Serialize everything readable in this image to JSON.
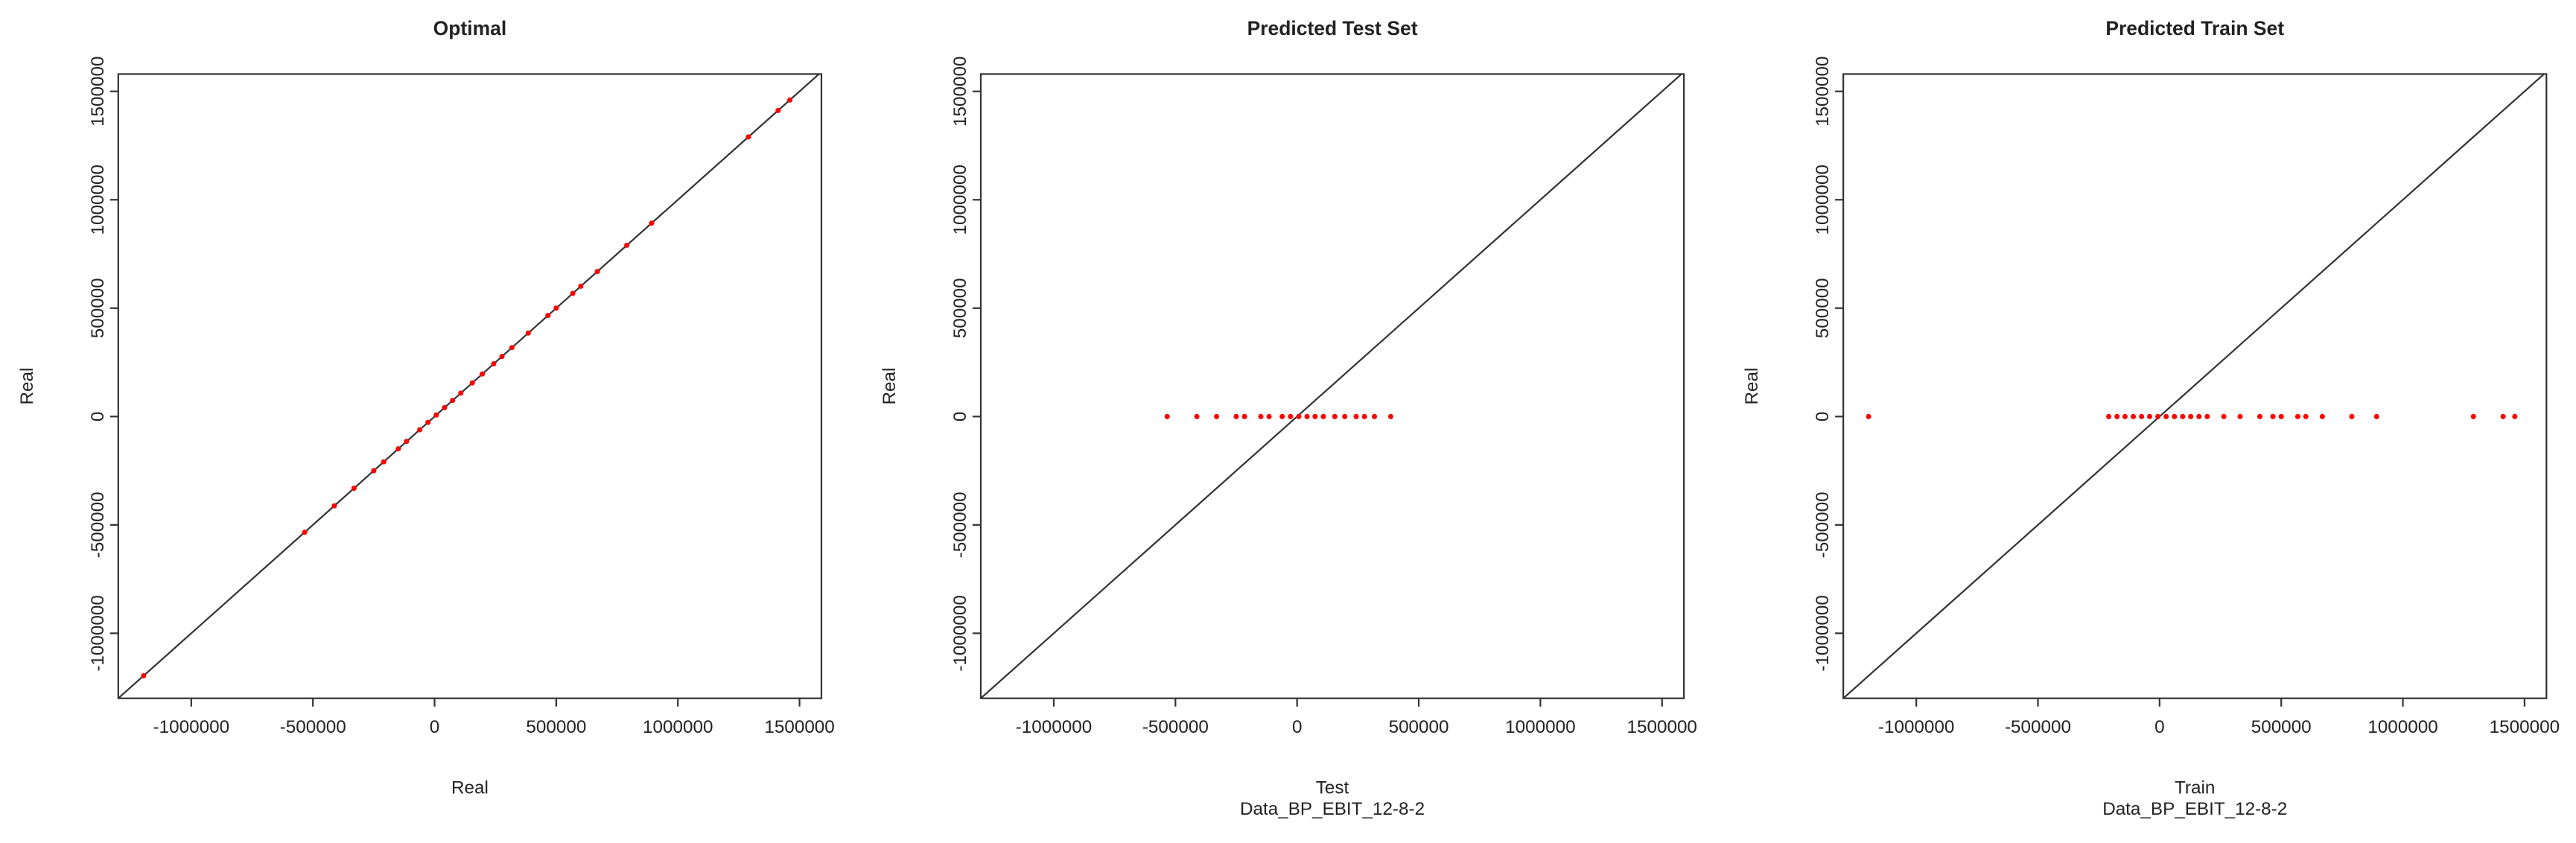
{
  "chart_data": [
    {
      "type": "scatter",
      "title": "Optimal",
      "xlabel": "Real",
      "ylabel": "Real",
      "color": "#ff0000",
      "diagonal": true,
      "x": [
        -1196000,
        -534000,
        -412000,
        -331000,
        -250000,
        -209000,
        -149000,
        -115000,
        -61000,
        -27000,
        7000,
        41000,
        74000,
        108000,
        155000,
        196000,
        243000,
        277000,
        318000,
        385000,
        466000,
        500000,
        568000,
        601000,
        669000,
        790000,
        892000,
        1290000,
        1412000,
        1460000
      ],
      "y": [
        -1196000,
        -534000,
        -412000,
        -331000,
        -250000,
        -209000,
        -149000,
        -115000,
        -61000,
        -27000,
        7000,
        41000,
        74000,
        108000,
        155000,
        196000,
        243000,
        277000,
        318000,
        385000,
        466000,
        500000,
        568000,
        601000,
        669000,
        790000,
        892000,
        1290000,
        1412000,
        1460000
      ],
      "xlim": [
        -1300000,
        1590000
      ],
      "ylim": [
        -1300000,
        1580000
      ],
      "xticks": [
        -1000000,
        -500000,
        0,
        500000,
        1000000,
        1500000
      ],
      "yticks": [
        -1000000,
        -500000,
        0,
        500000,
        1000000,
        1500000
      ]
    },
    {
      "type": "scatter",
      "title": "Predicted Test Set",
      "xlabel": "Test",
      "subtitle": "Data_BP_EBIT_12-8-2",
      "ylabel": "Real",
      "color": "#ff0000",
      "diagonal": true,
      "x": [
        -534000,
        -412000,
        -331000,
        -250000,
        -216000,
        -149000,
        -115000,
        -61000,
        -27000,
        7000,
        41000,
        74000,
        108000,
        155000,
        196000,
        243000,
        277000,
        318000,
        385000
      ],
      "y": [
        0,
        0,
        0,
        0,
        0,
        0,
        0,
        0,
        0,
        0,
        0,
        0,
        0,
        0,
        0,
        0,
        0,
        0,
        0
      ],
      "xlim": [
        -1300000,
        1590000
      ],
      "ylim": [
        -1300000,
        1580000
      ],
      "xticks": [
        -1000000,
        -500000,
        0,
        500000,
        1000000,
        1500000
      ],
      "yticks": [
        -1000000,
        -500000,
        0,
        500000,
        1000000,
        1500000
      ]
    },
    {
      "type": "scatter",
      "title": "Predicted Train Set",
      "xlabel": "Train",
      "subtitle": "Data_BP_EBIT_12-8-2",
      "ylabel": "Real",
      "color": "#ff0000",
      "diagonal": true,
      "x": [
        -1196000,
        -209000,
        -175000,
        -142000,
        -108000,
        -74000,
        -41000,
        -7000,
        27000,
        61000,
        95000,
        128000,
        162000,
        196000,
        264000,
        331000,
        412000,
        466000,
        500000,
        568000,
        601000,
        669000,
        790000,
        892000,
        1290000,
        1412000,
        1460000
      ],
      "y": [
        0,
        0,
        0,
        0,
        0,
        0,
        0,
        0,
        0,
        0,
        0,
        0,
        0,
        0,
        0,
        0,
        0,
        0,
        0,
        0,
        0,
        0,
        0,
        0,
        0,
        0,
        0
      ],
      "xlim": [
        -1300000,
        1590000
      ],
      "ylim": [
        -1300000,
        1580000
      ],
      "xticks": [
        -1000000,
        -500000,
        0,
        500000,
        1000000,
        1500000
      ],
      "yticks": [
        -1000000,
        -500000,
        0,
        500000,
        1000000,
        1500000
      ]
    }
  ]
}
